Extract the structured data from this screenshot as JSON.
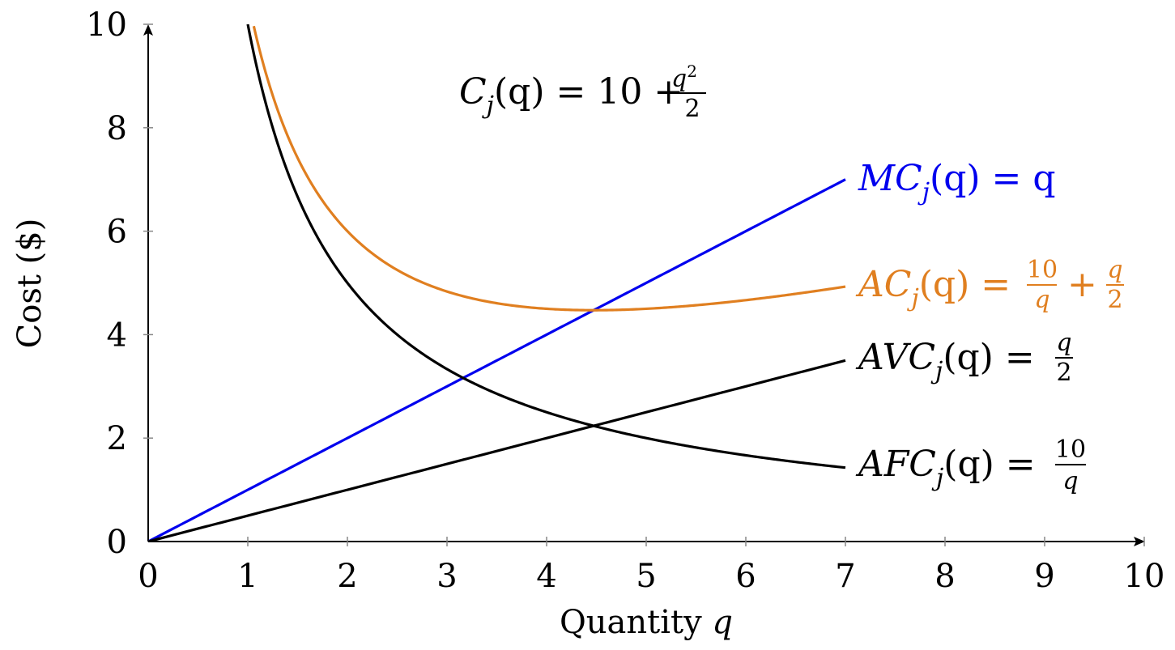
{
  "chart_data": {
    "type": "line",
    "xlabel": "Quantity q",
    "ylabel": "Cost ($)",
    "xlim": [
      0,
      10
    ],
    "ylim": [
      0,
      10
    ],
    "x_ticks": [
      "0",
      "1",
      "2",
      "3",
      "4",
      "5",
      "6",
      "7",
      "8",
      "9",
      "10"
    ],
    "y_ticks": [
      "0",
      "2",
      "4",
      "6",
      "8",
      "10"
    ],
    "grid": false,
    "legend": "inline labels at right end of each curve",
    "annotation": {
      "text": "C_j(q) = 10 + q^2/2",
      "parts": {
        "lhs": "C",
        "sub": "j",
        "arg": "(q) = 10 +",
        "num": "q",
        "sup": "2",
        "den": "2"
      }
    },
    "series": [
      {
        "key": "mc",
        "label": {
          "main": "MC",
          "sub": "j",
          "rest": "(q) = q"
        },
        "color": "#0000ee",
        "formula": "q",
        "x": [
          0,
          1,
          2,
          3,
          4,
          5,
          6,
          7
        ],
        "y": [
          0,
          1,
          2,
          3,
          4,
          5,
          6,
          7
        ]
      },
      {
        "key": "ac",
        "label": {
          "main": "AC",
          "sub": "j",
          "rest": "(q) =",
          "frac1_num": "10",
          "frac1_den": "q",
          "plus": "+",
          "frac2_num": "q",
          "frac2_den": "2"
        },
        "color": "#e07f20",
        "formula": "10/q + q/2",
        "x": [
          1.06,
          1.5,
          2,
          3,
          4,
          4.47,
          5,
          6,
          7
        ],
        "y": [
          10,
          7.42,
          6.0,
          4.83,
          4.5,
          4.47,
          4.5,
          4.67,
          4.93
        ]
      },
      {
        "key": "avc",
        "label": {
          "main": "AVC",
          "sub": "j",
          "rest": "(q) =",
          "frac_num": "q",
          "frac_den": "2"
        },
        "color": "#000000",
        "formula": "q/2",
        "x": [
          0,
          7
        ],
        "y": [
          0,
          3.5
        ]
      },
      {
        "key": "afc",
        "label": {
          "main": "AFC",
          "sub": "j",
          "rest": "(q) =",
          "frac_num": "10",
          "frac_den": "q"
        },
        "color": "#000000",
        "formula": "10/q",
        "x": [
          1,
          2,
          3,
          4,
          5,
          6,
          7
        ],
        "y": [
          10,
          5,
          3.33,
          2.5,
          2,
          1.67,
          1.43
        ]
      }
    ]
  }
}
